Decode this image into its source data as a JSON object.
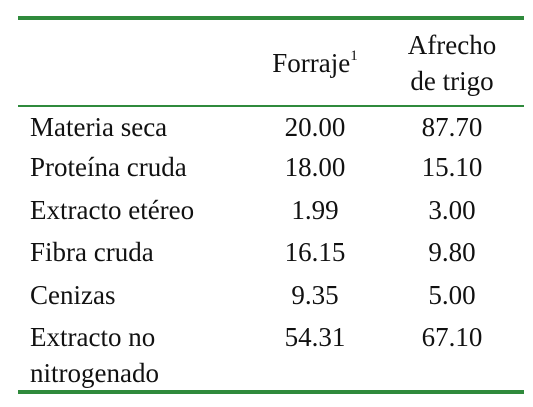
{
  "table": {
    "header": {
      "col1": "Forraje",
      "col1_note": "1",
      "col2": "Afrecho de trigo"
    },
    "rows": [
      [
        "Materia seca",
        "20.00",
        "87.70"
      ],
      [
        "Proteína cruda",
        "18.00",
        "15.10"
      ],
      [
        "Extracto etéreo",
        "1.99",
        "3.00"
      ],
      [
        "Fibra cruda",
        "16.15",
        "9.80"
      ],
      [
        "Cenizas",
        "9.35",
        "5.00"
      ],
      [
        "Extracto no nitrogenado",
        "54.31",
        "67.10"
      ]
    ]
  }
}
